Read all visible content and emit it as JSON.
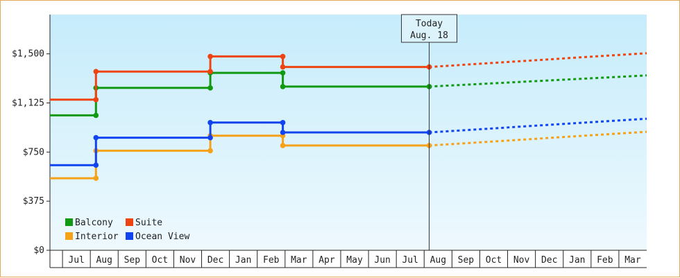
{
  "chart_data": {
    "type": "line",
    "title": "",
    "xlabel": "",
    "ylabel": "",
    "ylim": [
      0,
      1800
    ],
    "y_ticks": [
      {
        "value": 0,
        "label": "$0"
      },
      {
        "value": 375,
        "label": "$375"
      },
      {
        "value": 750,
        "label": "$750"
      },
      {
        "value": 1125,
        "label": "$1,125"
      },
      {
        "value": 1500,
        "label": "$1,500"
      }
    ],
    "months": [
      "Jul",
      "Aug",
      "Sep",
      "Oct",
      "Nov",
      "Dec",
      "Jan",
      "Feb",
      "Mar",
      "Apr",
      "May",
      "Jun",
      "Jul",
      "Aug",
      "Sep",
      "Oct",
      "Nov",
      "Dec",
      "Jan",
      "Feb",
      "Mar"
    ],
    "x_range": [
      0,
      21.4
    ],
    "today": {
      "line1": "Today",
      "line2": "Aug. 18",
      "x": 13.6
    },
    "legend": {
      "placement": "bottom-left"
    },
    "grid": false,
    "series": [
      {
        "name": "Balcony",
        "color": "#119911",
        "points": [
          [
            0,
            1030
          ],
          [
            1.65,
            1030
          ],
          [
            1.65,
            1240
          ],
          [
            5.75,
            1240
          ],
          [
            5.75,
            1355
          ],
          [
            8.35,
            1355
          ],
          [
            8.35,
            1250
          ],
          [
            13.6,
            1250
          ]
        ],
        "forecast": [
          [
            13.6,
            1250
          ],
          [
            21.4,
            1335
          ]
        ]
      },
      {
        "name": "Suite",
        "color": "#ee4411",
        "points": [
          [
            0,
            1150
          ],
          [
            1.65,
            1150
          ],
          [
            1.65,
            1365
          ],
          [
            5.75,
            1365
          ],
          [
            5.75,
            1480
          ],
          [
            8.35,
            1480
          ],
          [
            8.35,
            1400
          ],
          [
            13.6,
            1400
          ]
        ],
        "forecast": [
          [
            13.6,
            1400
          ],
          [
            21.4,
            1505
          ]
        ]
      },
      {
        "name": "Interior",
        "color": "#f5a219",
        "points": [
          [
            0,
            550
          ],
          [
            1.65,
            550
          ],
          [
            1.65,
            760
          ],
          [
            5.75,
            760
          ],
          [
            5.75,
            875
          ],
          [
            8.35,
            875
          ],
          [
            8.35,
            800
          ],
          [
            13.6,
            800
          ]
        ],
        "forecast": [
          [
            13.6,
            800
          ],
          [
            21.4,
            905
          ]
        ]
      },
      {
        "name": "Ocean View",
        "color": "#1144ee",
        "points": [
          [
            0,
            650
          ],
          [
            1.65,
            650
          ],
          [
            1.65,
            860
          ],
          [
            5.75,
            860
          ],
          [
            5.75,
            975
          ],
          [
            8.35,
            975
          ],
          [
            8.35,
            900
          ],
          [
            13.6,
            900
          ]
        ],
        "forecast": [
          [
            13.6,
            900
          ],
          [
            21.4,
            1005
          ]
        ]
      }
    ]
  }
}
